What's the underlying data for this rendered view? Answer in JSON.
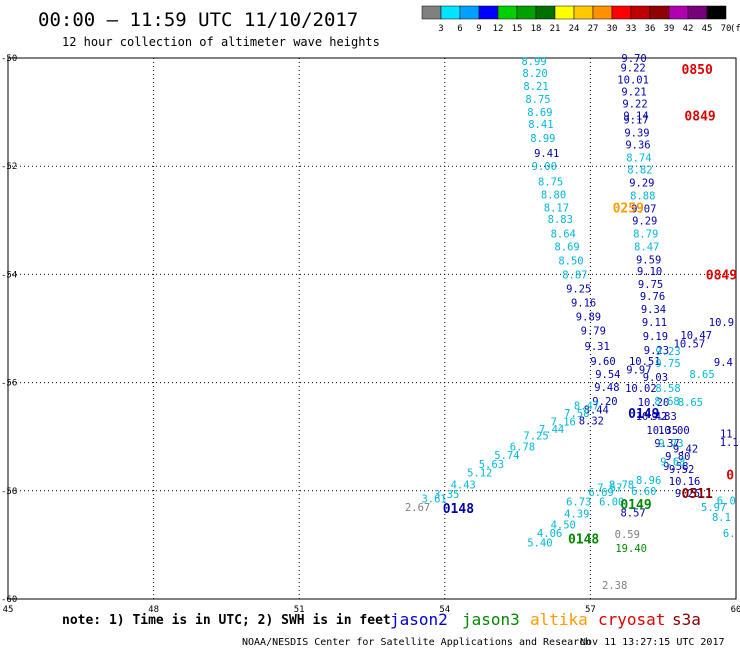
{
  "header": {
    "title": "00:00 – 11:59 UTC 11/10/2017",
    "subtitle": "12 hour collection of altimeter wave heights"
  },
  "colorbar": {
    "ticks": [
      "3",
      "6",
      "9",
      "12",
      "15",
      "18",
      "21",
      "24",
      "27",
      "30",
      "33",
      "36",
      "39",
      "42",
      "45",
      "70"
    ],
    "unit": "(ft)",
    "colors": [
      "#808080",
      "#00e5ff",
      "#00a0ff",
      "#0000ff",
      "#00d000",
      "#00a000",
      "#007000",
      "#ffff00",
      "#ffc800",
      "#ff9000",
      "#ff0000",
      "#c00000",
      "#900000",
      "#b000b0",
      "#780078",
      "#000000"
    ]
  },
  "footer": {
    "note": "note: 1) Time is in UTC; 2) SWH is in feet",
    "credit": "NOAA/NESDIS Center for Satellite Applications and Research",
    "timestamp": "Nov 11 13:27:15 UTC 2017"
  },
  "legend": [
    {
      "name": "jason2",
      "color": "#0000cc"
    },
    {
      "name": "jason3",
      "color": "#008800"
    },
    {
      "name": "altika",
      "color": "#ff9900"
    },
    {
      "name": "cryosat",
      "color": "#dd0000"
    },
    {
      "name": "s3a",
      "color": "#880000"
    }
  ],
  "chart_data": {
    "type": "scatter",
    "x_ticks": [
      "45",
      "48",
      "51",
      "54",
      "57",
      "60"
    ],
    "y_ticks": [
      "-50",
      "-52",
      "-54",
      "-56",
      "-58",
      "-60"
    ],
    "xlim": [
      45,
      60
    ],
    "ylim": [
      -60,
      -50
    ],
    "grid": true,
    "series_colors": {
      "jason2": "#0000aa",
      "jason3": "#008800",
      "altika": "#ff9900",
      "cryosat": "#dd0000",
      "s3a": "#880000",
      "cyan": "#00b8d8",
      "gray": "#808080"
    },
    "points": [
      {
        "lon": 55.84,
        "lat": -50.06,
        "v": "8.99",
        "c": "cyan"
      },
      {
        "lon": 55.86,
        "lat": -50.28,
        "v": "8.20",
        "c": "cyan"
      },
      {
        "lon": 55.88,
        "lat": -50.52,
        "v": "8.21",
        "c": "cyan"
      },
      {
        "lon": 55.92,
        "lat": -50.76,
        "v": "8.75",
        "c": "cyan"
      },
      {
        "lon": 55.96,
        "lat": -51.0,
        "v": "8.69",
        "c": "cyan"
      },
      {
        "lon": 55.98,
        "lat": -51.22,
        "v": "8.41",
        "c": "cyan"
      },
      {
        "lon": 56.02,
        "lat": -51.48,
        "v": "8.99",
        "c": "cyan"
      },
      {
        "lon": 56.1,
        "lat": -51.76,
        "v": "9.41",
        "c": "jason2"
      },
      {
        "lon": 56.05,
        "lat": -52.0,
        "v": "9.00",
        "c": "cyan"
      },
      {
        "lon": 56.18,
        "lat": -52.28,
        "v": "8.75",
        "c": "cyan"
      },
      {
        "lon": 56.24,
        "lat": -52.52,
        "v": "8.80",
        "c": "cyan"
      },
      {
        "lon": 56.3,
        "lat": -52.76,
        "v": "8.17",
        "c": "cyan"
      },
      {
        "lon": 56.38,
        "lat": -52.98,
        "v": "8.83",
        "c": "cyan"
      },
      {
        "lon": 56.44,
        "lat": -53.24,
        "v": "8.64",
        "c": "cyan"
      },
      {
        "lon": 56.52,
        "lat": -53.48,
        "v": "8.69",
        "c": "cyan"
      },
      {
        "lon": 56.6,
        "lat": -53.74,
        "v": "8.50",
        "c": "cyan"
      },
      {
        "lon": 56.68,
        "lat": -54.0,
        "v": "8.87",
        "c": "cyan"
      },
      {
        "lon": 56.76,
        "lat": -54.26,
        "v": "9.25",
        "c": "jason2"
      },
      {
        "lon": 56.86,
        "lat": -54.52,
        "v": "9.16",
        "c": "jason2"
      },
      {
        "lon": 56.96,
        "lat": -54.78,
        "v": "9.89",
        "c": "jason2"
      },
      {
        "lon": 57.06,
        "lat": -55.04,
        "v": "9.79",
        "c": "jason2"
      },
      {
        "lon": 57.14,
        "lat": -55.32,
        "v": "9.31",
        "c": "jason2"
      },
      {
        "lon": 57.26,
        "lat": -55.6,
        "v": "9.60",
        "c": "jason2"
      },
      {
        "lon": 57.36,
        "lat": -55.84,
        "v": "9.54",
        "c": "jason2"
      },
      {
        "lon": 57.34,
        "lat": -56.08,
        "v": "9.48",
        "c": "jason2"
      },
      {
        "lon": 57.3,
        "lat": -56.34,
        "v": "9.20",
        "c": "jason2"
      },
      {
        "lon": 57.12,
        "lat": -56.5,
        "v": "8.44",
        "c": "jason2"
      },
      {
        "lon": 57.02,
        "lat": -56.7,
        "v": "8.32",
        "c": "jason2"
      },
      {
        "lon": 57.9,
        "lat": -50.0,
        "v": "9.70",
        "c": "jason2"
      },
      {
        "lon": 57.88,
        "lat": -50.18,
        "v": "9.22",
        "c": "jason2"
      },
      {
        "lon": 57.88,
        "lat": -50.4,
        "v": "10.01",
        "c": "jason2"
      },
      {
        "lon": 57.9,
        "lat": -50.62,
        "v": "9.21",
        "c": "jason2"
      },
      {
        "lon": 57.92,
        "lat": -50.84,
        "v": "9.22",
        "c": "jason2"
      },
      {
        "lon": 57.94,
        "lat": -51.06,
        "v": "9.14",
        "c": "jason2"
      },
      {
        "lon": 57.94,
        "lat": -51.14,
        "v": "9.17",
        "c": "jason2"
      },
      {
        "lon": 57.96,
        "lat": -51.38,
        "v": "9.39",
        "c": "jason2"
      },
      {
        "lon": 57.98,
        "lat": -51.6,
        "v": "9.36",
        "c": "jason2"
      },
      {
        "lon": 58.0,
        "lat": -51.84,
        "v": "8.74",
        "c": "cyan"
      },
      {
        "lon": 58.02,
        "lat": -52.06,
        "v": "8.82",
        "c": "cyan"
      },
      {
        "lon": 58.06,
        "lat": -52.3,
        "v": "9.29",
        "c": "jason2"
      },
      {
        "lon": 58.08,
        "lat": -52.54,
        "v": "8.88",
        "c": "cyan"
      },
      {
        "lon": 58.1,
        "lat": -52.78,
        "v": "9.07",
        "c": "jason2"
      },
      {
        "lon": 58.12,
        "lat": -53.0,
        "v": "9.29",
        "c": "jason2"
      },
      {
        "lon": 58.14,
        "lat": -53.24,
        "v": "8.79",
        "c": "cyan"
      },
      {
        "lon": 58.16,
        "lat": -53.48,
        "v": "8.47",
        "c": "cyan"
      },
      {
        "lon": 58.2,
        "lat": -53.72,
        "v": "9.59",
        "c": "jason2"
      },
      {
        "lon": 58.22,
        "lat": -53.94,
        "v": "9.10",
        "c": "jason2"
      },
      {
        "lon": 58.24,
        "lat": -54.18,
        "v": "9.75",
        "c": "jason2"
      },
      {
        "lon": 58.28,
        "lat": -54.4,
        "v": "9.76",
        "c": "jason2"
      },
      {
        "lon": 58.3,
        "lat": -54.64,
        "v": "9.34",
        "c": "jason2"
      },
      {
        "lon": 58.32,
        "lat": -54.88,
        "v": "9.11",
        "c": "jason2"
      },
      {
        "lon": 58.34,
        "lat": -55.14,
        "v": "9.19",
        "c": "jason2"
      },
      {
        "lon": 58.36,
        "lat": -55.4,
        "v": "9.23",
        "c": "jason2"
      },
      {
        "lon": 58.12,
        "lat": -55.6,
        "v": "10.51",
        "c": "jason2"
      },
      {
        "lon": 58.0,
        "lat": -55.76,
        "v": "9.97",
        "c": "jason2"
      },
      {
        "lon": 58.34,
        "lat": -55.9,
        "v": "9.03",
        "c": "jason2"
      },
      {
        "lon": 58.04,
        "lat": -56.1,
        "v": "10.02",
        "c": "jason2"
      },
      {
        "lon": 58.3,
        "lat": -56.36,
        "v": "10.20",
        "c": "jason2"
      },
      {
        "lon": 58.26,
        "lat": -56.62,
        "v": "10.42",
        "c": "jason2"
      },
      {
        "lon": 58.52,
        "lat": -56.62,
        "v": "9.83",
        "c": "jason2"
      },
      {
        "lon": 58.48,
        "lat": -56.88,
        "v": "10.35",
        "c": "jason2"
      },
      {
        "lon": 58.72,
        "lat": -56.88,
        "v": "10.00",
        "c": "jason2"
      },
      {
        "lon": 58.58,
        "lat": -57.12,
        "v": "9.37",
        "c": "jason2"
      },
      {
        "lon": 58.96,
        "lat": -57.22,
        "v": "9.42",
        "c": "jason2"
      },
      {
        "lon": 58.8,
        "lat": -57.36,
        "v": "9.80",
        "c": "jason2"
      },
      {
        "lon": 58.76,
        "lat": -57.54,
        "v": "9.58",
        "c": "jason2"
      },
      {
        "lon": 58.88,
        "lat": -57.6,
        "v": "9.52",
        "c": "jason2"
      },
      {
        "lon": 58.94,
        "lat": -57.82,
        "v": "10.16",
        "c": "jason2"
      },
      {
        "lon": 59.0,
        "lat": -58.04,
        "v": "9.25",
        "c": "jason2"
      },
      {
        "lon": 59.18,
        "lat": -55.12,
        "v": "10.47",
        "c": "jason2"
      },
      {
        "lon": 59.04,
        "lat": -55.28,
        "v": "10.57",
        "c": "jason2"
      },
      {
        "lon": 59.7,
        "lat": -54.88,
        "v": "10.9",
        "c": "jason2"
      },
      {
        "lon": 59.74,
        "lat": -55.62,
        "v": "9.4",
        "c": "jason2"
      },
      {
        "lon": 59.8,
        "lat": -56.94,
        "v": "11",
        "c": "jason2"
      },
      {
        "lon": 59.86,
        "lat": -57.1,
        "v": "1.1",
        "c": "jason2"
      },
      {
        "lon": 58.6,
        "lat": -55.42,
        "v": "9.23",
        "c": "cyan"
      },
      {
        "lon": 58.6,
        "lat": -55.64,
        "v": "9.75",
        "c": "cyan"
      },
      {
        "lon": 59.3,
        "lat": -55.84,
        "v": "8.65",
        "c": "cyan"
      },
      {
        "lon": 58.6,
        "lat": -56.1,
        "v": "8.58",
        "c": "cyan"
      },
      {
        "lon": 58.58,
        "lat": -56.34,
        "v": "8.68",
        "c": "cyan"
      },
      {
        "lon": 59.06,
        "lat": -56.36,
        "v": "8.65",
        "c": "cyan"
      },
      {
        "lon": 58.66,
        "lat": -57.12,
        "v": "9.73",
        "c": "cyan"
      },
      {
        "lon": 58.7,
        "lat": -57.46,
        "v": "9.68",
        "c": "cyan"
      },
      {
        "lon": 58.2,
        "lat": -57.8,
        "v": "8.96",
        "c": "cyan"
      },
      {
        "lon": 58.1,
        "lat": -58.0,
        "v": "6.60",
        "c": "cyan"
      },
      {
        "lon": 57.64,
        "lat": -57.88,
        "v": "8.78",
        "c": "cyan"
      },
      {
        "lon": 57.4,
        "lat": -57.94,
        "v": "7.57",
        "c": "cyan"
      },
      {
        "lon": 57.22,
        "lat": -58.02,
        "v": "6.69",
        "c": "cyan"
      },
      {
        "lon": 56.76,
        "lat": -58.2,
        "v": "6.73",
        "c": "cyan"
      },
      {
        "lon": 56.72,
        "lat": -58.42,
        "v": "4.39",
        "c": "cyan"
      },
      {
        "lon": 56.44,
        "lat": -58.62,
        "v": "4.50",
        "c": "cyan"
      },
      {
        "lon": 56.16,
        "lat": -58.78,
        "v": "4.06",
        "c": "cyan"
      },
      {
        "lon": 55.96,
        "lat": -58.96,
        "v": "5.40",
        "c": "cyan"
      },
      {
        "lon": 57.44,
        "lat": -58.2,
        "v": "6.00",
        "c": "cyan"
      },
      {
        "lon": 57.88,
        "lat": -58.4,
        "v": "8.57",
        "c": "jason2"
      },
      {
        "lon": 59.54,
        "lat": -58.3,
        "v": "5.97",
        "c": "cyan"
      },
      {
        "lon": 59.7,
        "lat": -58.48,
        "v": "8.1",
        "c": "cyan"
      },
      {
        "lon": 59.86,
        "lat": -58.78,
        "v": "6.",
        "c": "cyan"
      },
      {
        "lon": 59.8,
        "lat": -58.18,
        "v": "6.0",
        "c": "cyan"
      },
      {
        "lon": 53.78,
        "lat": -58.14,
        "v": "3.61",
        "c": "cyan"
      },
      {
        "lon": 54.04,
        "lat": -58.06,
        "v": "3.35",
        "c": "cyan"
      },
      {
        "lon": 54.38,
        "lat": -57.88,
        "v": "4.43",
        "c": "cyan"
      },
      {
        "lon": 54.72,
        "lat": -57.66,
        "v": "5.12",
        "c": "cyan"
      },
      {
        "lon": 54.96,
        "lat": -57.5,
        "v": "5.63",
        "c": "cyan"
      },
      {
        "lon": 55.28,
        "lat": -57.34,
        "v": "5.74",
        "c": "cyan"
      },
      {
        "lon": 55.6,
        "lat": -57.18,
        "v": "6.78",
        "c": "cyan"
      },
      {
        "lon": 55.88,
        "lat": -56.98,
        "v": "7.25",
        "c": "cyan"
      },
      {
        "lon": 56.2,
        "lat": -56.86,
        "v": "7.44",
        "c": "cyan"
      },
      {
        "lon": 56.44,
        "lat": -56.72,
        "v": "7.16",
        "c": "cyan"
      },
      {
        "lon": 56.72,
        "lat": -56.56,
        "v": "7.58",
        "c": "cyan"
      },
      {
        "lon": 56.92,
        "lat": -56.42,
        "v": "8.47",
        "c": "cyan"
      },
      {
        "lon": 53.44,
        "lat": -58.3,
        "v": "2.67",
        "c": "gray"
      },
      {
        "lon": 57.76,
        "lat": -58.8,
        "v": "0.59",
        "c": "gray"
      },
      {
        "lon": 57.5,
        "lat": -59.74,
        "v": "2.38",
        "c": "gray"
      },
      {
        "lon": 57.84,
        "lat": -59.06,
        "v": "19.40",
        "c": "jason3"
      }
    ],
    "passes": [
      {
        "lon": 54.28,
        "lat": -58.32,
        "v": "0148",
        "c": "jason2"
      },
      {
        "lon": 58.1,
        "lat": -56.56,
        "v": "0149",
        "c": "jason2"
      },
      {
        "lon": 56.86,
        "lat": -58.88,
        "v": "0148",
        "c": "jason3"
      },
      {
        "lon": 57.94,
        "lat": -58.24,
        "v": "0149",
        "c": "jason3"
      },
      {
        "lon": 57.78,
        "lat": -52.76,
        "v": "0259",
        "c": "altika"
      },
      {
        "lon": 59.2,
        "lat": -50.2,
        "v": "0850",
        "c": "cryosat"
      },
      {
        "lon": 59.26,
        "lat": -51.06,
        "v": "0849",
        "c": "cryosat"
      },
      {
        "lon": 59.7,
        "lat": -54.0,
        "v": "0849",
        "c": "cryosat"
      },
      {
        "lon": 59.2,
        "lat": -58.04,
        "v": "0511",
        "c": "s3a"
      },
      {
        "lon": 59.88,
        "lat": -57.7,
        "v": "0",
        "c": "cryosat"
      }
    ]
  }
}
